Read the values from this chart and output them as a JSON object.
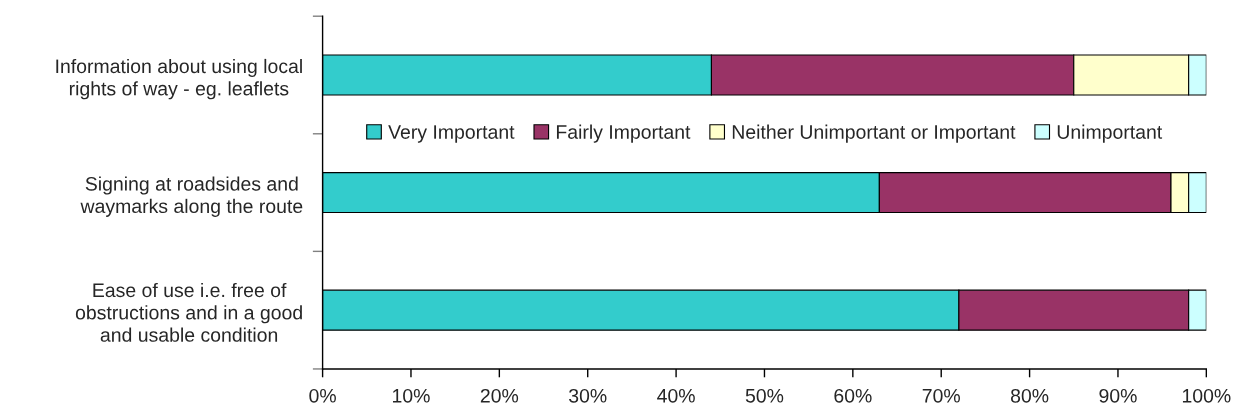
{
  "chart_data": {
    "type": "bar",
    "orientation": "horizontal",
    "stacked": true,
    "categories": [
      "Information about using local\nrights of way - eg. leaflets",
      "Signing at roadsides and\nwaymarks along the route",
      "Ease of use i.e. free of\nobstructions and in a good\nand usable condition"
    ],
    "series": [
      {
        "name": "Very Important",
        "color": "#33cccc",
        "values": [
          44,
          63,
          72
        ]
      },
      {
        "name": "Fairly Important",
        "color": "#993366",
        "values": [
          41,
          33,
          26
        ]
      },
      {
        "name": "Neither Unimportant or Important",
        "color": "#ffffcc",
        "values": [
          13,
          2,
          0
        ]
      },
      {
        "name": "Unimportant",
        "color": "#ccffff",
        "values": [
          2,
          2,
          2
        ]
      }
    ],
    "xlim": [
      0,
      100
    ],
    "xticks": [
      {
        "value": 0,
        "label": "0%"
      },
      {
        "value": 10,
        "label": "10%"
      },
      {
        "value": 20,
        "label": "20%"
      },
      {
        "value": 30,
        "label": "30%"
      },
      {
        "value": 40,
        "label": "40%"
      },
      {
        "value": 50,
        "label": "50%"
      },
      {
        "value": 60,
        "label": "60%"
      },
      {
        "value": 70,
        "label": "70%"
      },
      {
        "value": 80,
        "label": "80%"
      },
      {
        "value": 90,
        "label": "90%"
      },
      {
        "value": 100,
        "label": "100%"
      }
    ],
    "legend": "top"
  }
}
